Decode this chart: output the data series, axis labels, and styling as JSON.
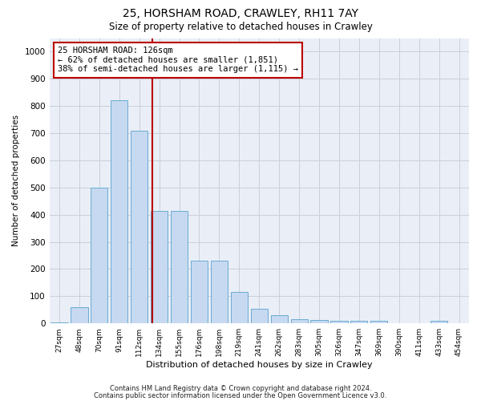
{
  "title": "25, HORSHAM ROAD, CRAWLEY, RH11 7AY",
  "subtitle": "Size of property relative to detached houses in Crawley",
  "xlabel": "Distribution of detached houses by size in Crawley",
  "ylabel": "Number of detached properties",
  "bar_color": "#c6d9f0",
  "bar_edge_color": "#6aaad4",
  "grid_color": "#c8d0dc",
  "background_color": "#eaeff7",
  "marker_color": "#bb0000",
  "annotation_text": "25 HORSHAM ROAD: 126sqm\n← 62% of detached houses are smaller (1,851)\n38% of semi-detached houses are larger (1,115) →",
  "annotation_box_color": "#ffffff",
  "annotation_box_edge": "#bb0000",
  "categories": [
    "27sqm",
    "48sqm",
    "70sqm",
    "91sqm",
    "112sqm",
    "134sqm",
    "155sqm",
    "176sqm",
    "198sqm",
    "219sqm",
    "241sqm",
    "262sqm",
    "283sqm",
    "305sqm",
    "326sqm",
    "347sqm",
    "369sqm",
    "390sqm",
    "411sqm",
    "433sqm",
    "454sqm"
  ],
  "values": [
    5,
    60,
    500,
    820,
    710,
    415,
    415,
    230,
    230,
    115,
    55,
    30,
    15,
    12,
    10,
    8,
    8,
    0,
    0,
    8,
    0
  ],
  "ylim": [
    0,
    1050
  ],
  "yticks": [
    0,
    100,
    200,
    300,
    400,
    500,
    600,
    700,
    800,
    900,
    1000
  ],
  "footnote1": "Contains HM Land Registry data © Crown copyright and database right 2024.",
  "footnote2": "Contains public sector information licensed under the Open Government Licence v3.0."
}
